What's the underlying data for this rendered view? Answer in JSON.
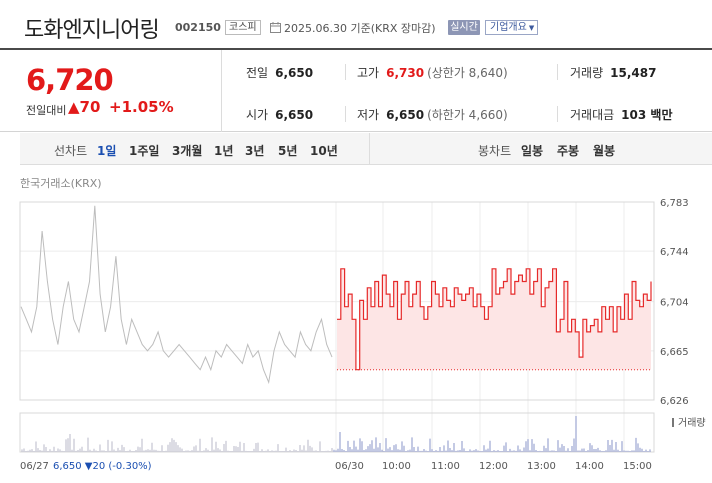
{
  "header": {
    "name": "도화엔지니어링",
    "code": "002150",
    "market": "코스피",
    "datetime": "2025.06.30 기준(KRX 장마감)",
    "live_label": "실시간",
    "company_label": "기업개요"
  },
  "quote": {
    "price": "6,720",
    "change_label": "전일대비",
    "change_value": "70",
    "change_rate": "+1.05%",
    "prev_close_label": "전일",
    "prev_close": "6,650",
    "high_label": "고가",
    "high": "6,730",
    "upper_limit": "(상한가 8,640)",
    "volume_label": "거래량",
    "volume": "15,487",
    "open_label": "시가",
    "open": "6,650",
    "low_label": "저가",
    "low": "6,650",
    "lower_limit": "(하한가 4,660)",
    "amount_label": "거래대금",
    "amount": "103 백만"
  },
  "tabs": {
    "line_label": "선차트",
    "line_tabs": [
      "1일",
      "1주일",
      "3개월",
      "1년",
      "3년",
      "5년",
      "10년"
    ],
    "active": "1일",
    "candle_label": "봉차트",
    "candle_tabs": [
      "일봉",
      "주봉",
      "월봉"
    ]
  },
  "chart": {
    "exchange": "한국거래소(KRX)",
    "volume_label": "거래량",
    "prev_summary": {
      "date": "06/27",
      "price": "6,650",
      "change": "▼20 (-0.30%)"
    },
    "colors": {
      "today": "#e62a2a",
      "today_fill": "#fde5e5",
      "prev": "#bdbdbd",
      "up": "#e21a1a",
      "down": "#1b4fb1"
    }
  },
  "chart_data": {
    "type": "line",
    "title": "",
    "y_ticks": [
      "6,783",
      "6,744",
      "6,704",
      "6,665",
      "6,626"
    ],
    "ylim": [
      6626,
      6783
    ],
    "x_ticks": [
      "06/27",
      "06/30",
      "10:00",
      "11:00",
      "12:00",
      "13:00",
      "14:00",
      "15:00"
    ],
    "baseline": 6650,
    "series": [
      {
        "values": [
          6700,
          6690,
          6680,
          6700,
          6760,
          6720,
          6690,
          6670,
          6700,
          6720,
          6690,
          6680,
          6700,
          6720,
          6780,
          6710,
          6680,
          6700,
          6740,
          6690,
          6670,
          6690,
          6680,
          6670,
          6665,
          6670,
          6680,
          6665,
          6660,
          6665,
          6670,
          6665,
          6660,
          6655,
          6650,
          6660,
          6650,
          6665,
          6660,
          6670,
          6665,
          6660,
          6655,
          6670,
          6660,
          6665,
          6650,
          6640,
          6665,
          6680,
          6670,
          6665,
          6660,
          6680,
          6670,
          6665,
          6680,
          6690,
          6670,
          6660
        ]
      },
      {
        "values": [
          6690,
          6730,
          6700,
          6710,
          6690,
          6650,
          6705,
          6690,
          6715,
          6700,
          6720,
          6700,
          6725,
          6710,
          6700,
          6720,
          6690,
          6710,
          6720,
          6700,
          6710,
          6720,
          6700,
          6690,
          6700,
          6720,
          6710,
          6700,
          6715,
          6705,
          6700,
          6715,
          6710,
          6705,
          6710,
          6715,
          6700,
          6710,
          6700,
          6690,
          6700,
          6730,
          6710,
          6715,
          6720,
          6730,
          6710,
          6720,
          6725,
          6720,
          6730,
          6710,
          6720,
          6730,
          6700,
          6715,
          6720,
          6730,
          6680,
          6690,
          6720,
          6680,
          6690,
          6680,
          6660,
          6690,
          6680,
          6685,
          6690,
          6680,
          6700,
          6690,
          6700,
          6680,
          6700,
          6690,
          6710,
          6690,
          6720,
          6705,
          6700,
          6710,
          6705,
          6720
        ]
      }
    ]
  }
}
